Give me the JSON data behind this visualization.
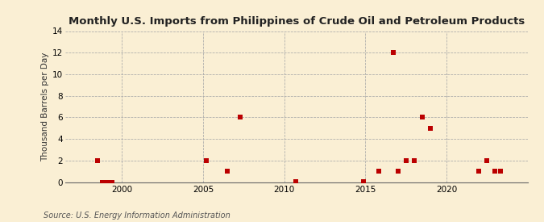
{
  "title": "Monthly U.S. Imports from Philippines of Crude Oil and Petroleum Products",
  "ylabel": "Thousand Barrels per Day",
  "source": "Source: U.S. Energy Information Administration",
  "outer_bg": "#faefd4",
  "plot_bg": "#faefd4",
  "marker_color": "#bb0000",
  "xlim": [
    1996.5,
    2025
  ],
  "ylim": [
    0,
    14
  ],
  "yticks": [
    0,
    2,
    4,
    6,
    8,
    10,
    12,
    14
  ],
  "xticks": [
    2000,
    2005,
    2010,
    2015,
    2020
  ],
  "data_points": [
    [
      1998.5,
      2
    ],
    [
      1998.8,
      0.0
    ],
    [
      1999.1,
      0.0
    ],
    [
      1999.4,
      0.0
    ],
    [
      2005.2,
      2
    ],
    [
      2006.5,
      1
    ],
    [
      2007.3,
      6
    ],
    [
      2010.7,
      0.05
    ],
    [
      2014.9,
      0.05
    ],
    [
      2015.8,
      1
    ],
    [
      2016.7,
      12
    ],
    [
      2017.0,
      1
    ],
    [
      2017.5,
      2
    ],
    [
      2018.0,
      2
    ],
    [
      2018.5,
      6
    ],
    [
      2019.0,
      5
    ],
    [
      2022.0,
      1
    ],
    [
      2022.5,
      2
    ],
    [
      2023.0,
      1
    ],
    [
      2023.3,
      1
    ]
  ]
}
